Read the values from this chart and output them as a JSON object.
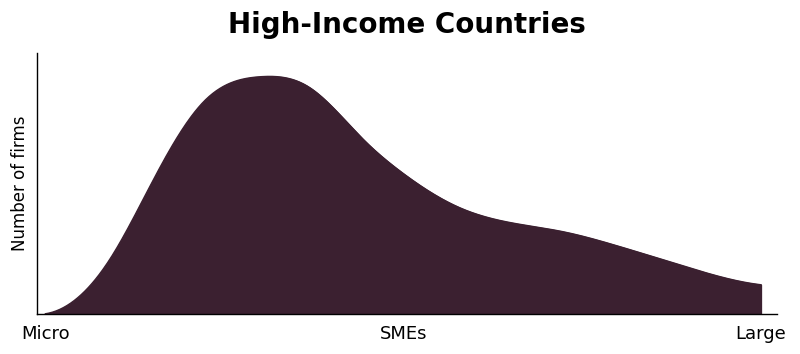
{
  "title": "High-Income Countries",
  "title_fontsize": 20,
  "title_fontweight": "bold",
  "ylabel": "Number of firms",
  "ylabel_fontsize": 12,
  "xtick_labels": [
    "Micro",
    "SMEs",
    "Large"
  ],
  "xtick_positions": [
    0.0,
    0.45,
    0.9
  ],
  "xtick_fontsize": 13,
  "fill_color": "#3b2030",
  "background_color": "#ffffff",
  "curve_x": [
    0.0,
    0.03,
    0.08,
    0.14,
    0.2,
    0.27,
    0.33,
    0.4,
    0.45,
    0.52,
    0.58,
    0.65,
    0.72,
    0.8,
    0.88,
    0.9
  ],
  "curve_y": [
    0.0,
    0.04,
    0.22,
    0.58,
    0.88,
    0.98,
    0.94,
    0.72,
    0.58,
    0.44,
    0.38,
    0.34,
    0.28,
    0.2,
    0.13,
    0.12
  ],
  "xlim": [
    -0.01,
    0.92
  ],
  "ylim": [
    0.0,
    1.08
  ]
}
